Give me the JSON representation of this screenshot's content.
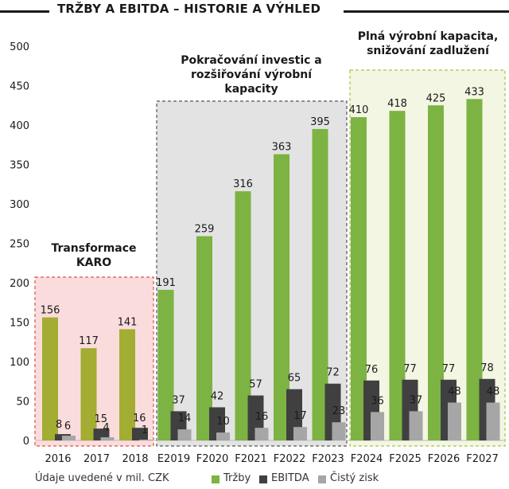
{
  "header": {
    "title": "TRŽBY A EBITDA – HISTORIE A VÝHLED"
  },
  "regions": {
    "transformace": [
      "Transformace",
      "KARO"
    ],
    "pokracovani": [
      "Pokračování investic a",
      "rozšiřování výrobní",
      "kapacity"
    ],
    "plna": [
      "Plná výrobní kapacita,",
      "snižování zadlužení"
    ]
  },
  "footnote": "Údaje uvedené v mil. CZK",
  "legend": [
    {
      "label": "Tržby",
      "color": "#7cb342"
    },
    {
      "label": "EBITDA",
      "color": "#404040"
    },
    {
      "label": "Čistý zisk",
      "color": "#a6a6a6"
    }
  ],
  "colors": {
    "trzby": "#7cb342",
    "trzby_history": "#a2ad32",
    "ebitda": "#404040",
    "zisk": "#a6a6a6",
    "box_red_fill": "#fbdcdc",
    "box_red_border": "#d9534f",
    "box_gray_fill": "#e3e3e3",
    "box_gray_border": "#555555",
    "box_green_fill": "#f3f6e2",
    "box_green_border": "#a9c24d"
  },
  "chart_data": {
    "type": "bar",
    "categories": [
      "2016",
      "2017",
      "2018",
      "E2019",
      "F2020",
      "F2021",
      "F2022",
      "F2023",
      "F2024",
      "F2025",
      "F2026",
      "F2027"
    ],
    "series": [
      {
        "name": "Tržby",
        "values": [
          156,
          117,
          141,
          191,
          259,
          316,
          363,
          395,
          410,
          418,
          425,
          433
        ]
      },
      {
        "name": "EBITDA",
        "values": [
          8,
          15,
          16,
          37,
          42,
          57,
          65,
          72,
          76,
          77,
          77,
          78
        ]
      },
      {
        "name": "Čistý zisk",
        "values": [
          6,
          4,
          1,
          14,
          10,
          16,
          17,
          23,
          36,
          37,
          48,
          48
        ]
      }
    ],
    "y_ticks": [
      0,
      50,
      100,
      150,
      200,
      250,
      300,
      350,
      400,
      450,
      500
    ],
    "ylim": [
      0,
      500
    ],
    "grid": false,
    "legend_position": "bottom"
  }
}
